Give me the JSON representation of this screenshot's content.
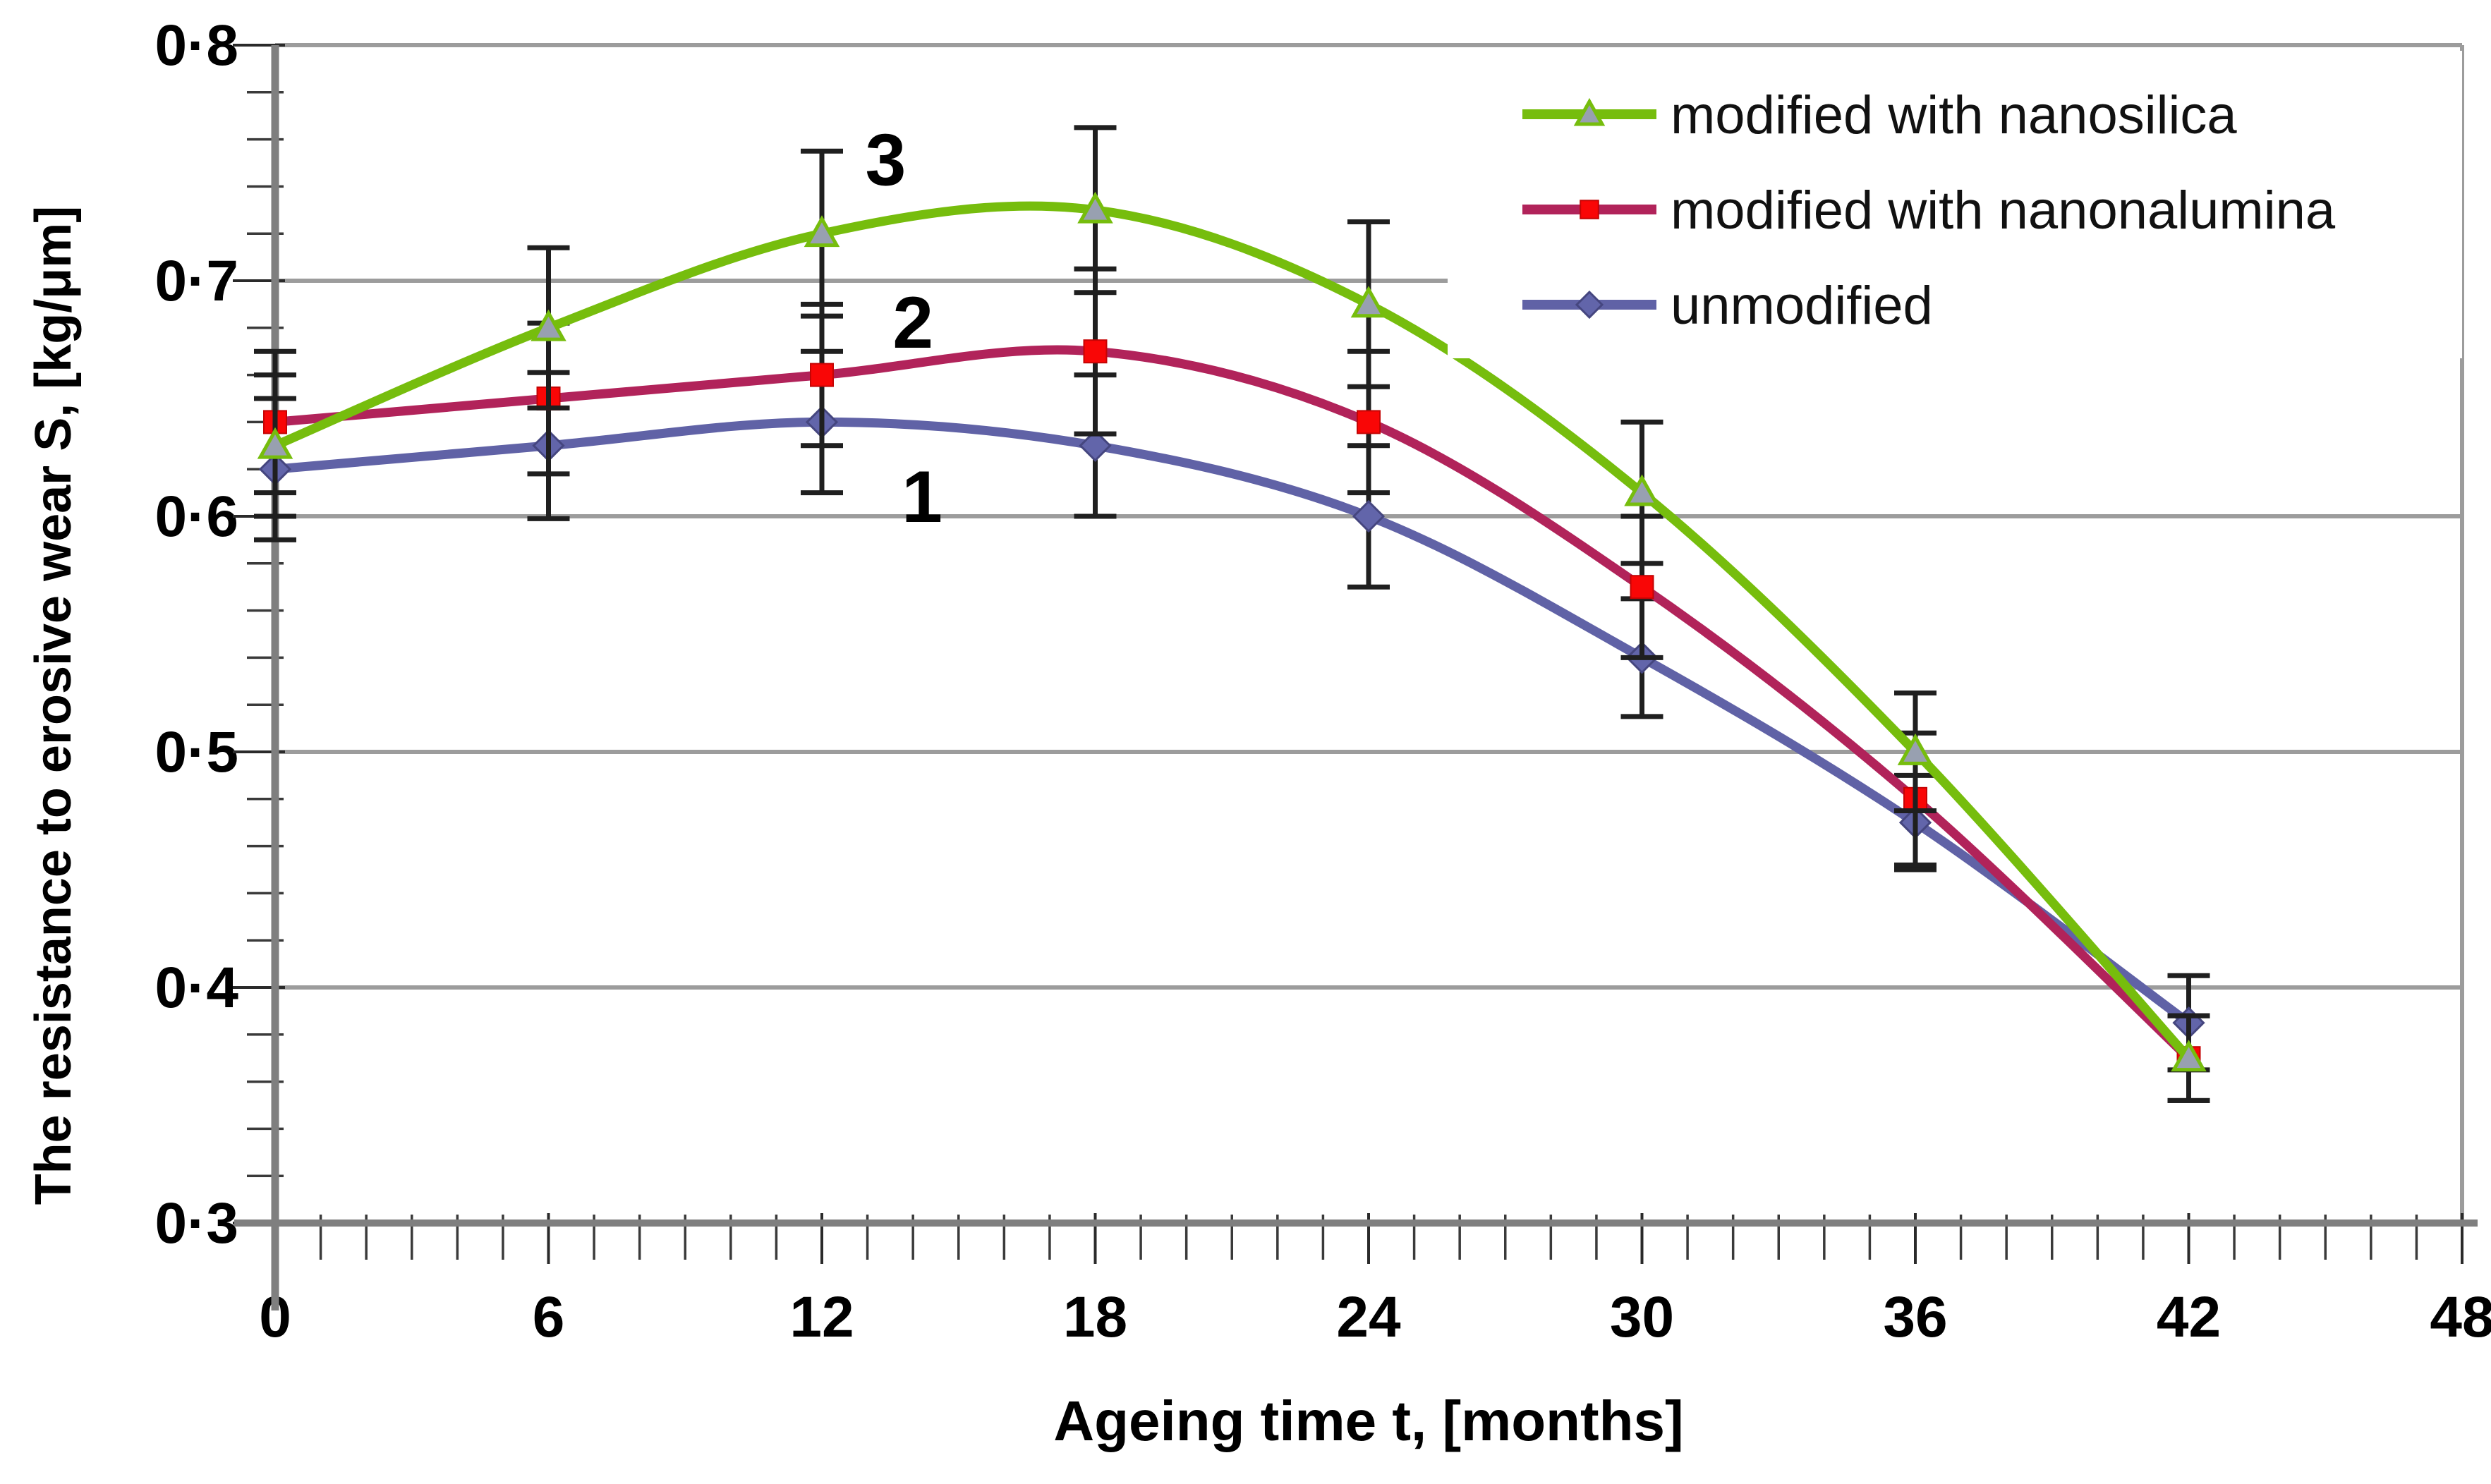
{
  "chart_data": {
    "type": "line",
    "title": "",
    "xlabel": "Ageing time t, [months]",
    "ylabel": "The resistance to erosive wear S, [kg/μm]",
    "xlim": [
      0,
      48
    ],
    "ylim": [
      0.3,
      0.8
    ],
    "grid": "horizontal",
    "legend_position": "top-right-inside",
    "x": [
      0,
      6,
      12,
      18,
      24,
      30,
      36,
      42
    ],
    "x_ticks": [
      {
        "v": 0,
        "label": "0"
      },
      {
        "v": 6,
        "label": "6"
      },
      {
        "v": 12,
        "label": "12"
      },
      {
        "v": 18,
        "label": "18"
      },
      {
        "v": 24,
        "label": "24"
      },
      {
        "v": 30,
        "label": "30"
      },
      {
        "v": 36,
        "label": "36"
      },
      {
        "v": 42,
        "label": "42"
      },
      {
        "v": 48,
        "label": "48"
      }
    ],
    "x_minor_step": 1,
    "y_ticks": [
      {
        "v": 0.3,
        "label": "0·3"
      },
      {
        "v": 0.4,
        "label": "0·4"
      },
      {
        "v": 0.5,
        "label": "0·5"
      },
      {
        "v": 0.6,
        "label": "0·6"
      },
      {
        "v": 0.7,
        "label": "0·7"
      },
      {
        "v": 0.8,
        "label": "0·8"
      }
    ],
    "y_minor_step": 0.02,
    "series": [
      {
        "name": "unmodified",
        "number_label": "1",
        "color": "#6062a6",
        "marker": "diamond",
        "marker_fill": "#6265aa",
        "marker_stroke": "#45467f",
        "values": [
          0.62,
          0.63,
          0.64,
          0.63,
          0.6,
          0.54,
          0.47,
          0.385
        ],
        "errors": [
          0.03,
          0.031,
          0.03,
          0.03,
          0.03,
          0.025,
          0.02,
          0.02
        ]
      },
      {
        "name": "modified with nanonalumina",
        "number_label": "2",
        "color": "#b1235a",
        "marker": "square",
        "marker_fill": "#f90606",
        "marker_stroke": "#c40404",
        "values": [
          0.64,
          0.65,
          0.66,
          0.67,
          0.64,
          0.57,
          0.48,
          0.37
        ],
        "errors": [
          0.03,
          0.032,
          0.03,
          0.035,
          0.03,
          0.03,
          0.028,
          0.018
        ]
      },
      {
        "name": "modified with nanosilica",
        "number_label": "3",
        "color": "#76bd0d",
        "marker": "triangle",
        "marker_fill": "#98a0b0",
        "marker_stroke": "#76bd0d",
        "values": [
          0.63,
          0.68,
          0.72,
          0.73,
          0.69,
          0.61,
          0.5,
          0.37
        ],
        "errors": [
          0.03,
          0.034,
          0.035,
          0.035,
          0.035,
          0.03,
          0.025,
          0.018
        ]
      }
    ],
    "annotations": [
      {
        "text": "3",
        "x": 13.4,
        "v": 0.752
      },
      {
        "text": "2",
        "x": 14.0,
        "v": 0.683
      },
      {
        "text": "1",
        "x": 14.2,
        "v": 0.609
      }
    ],
    "colors": {
      "gridline": "#9c9c9c",
      "axis": "#7f7f7f",
      "tick": "#2a2a2a",
      "error_bar": "#1f1f1f",
      "background": "#ffffff",
      "legend_background": "#ffffff"
    }
  }
}
